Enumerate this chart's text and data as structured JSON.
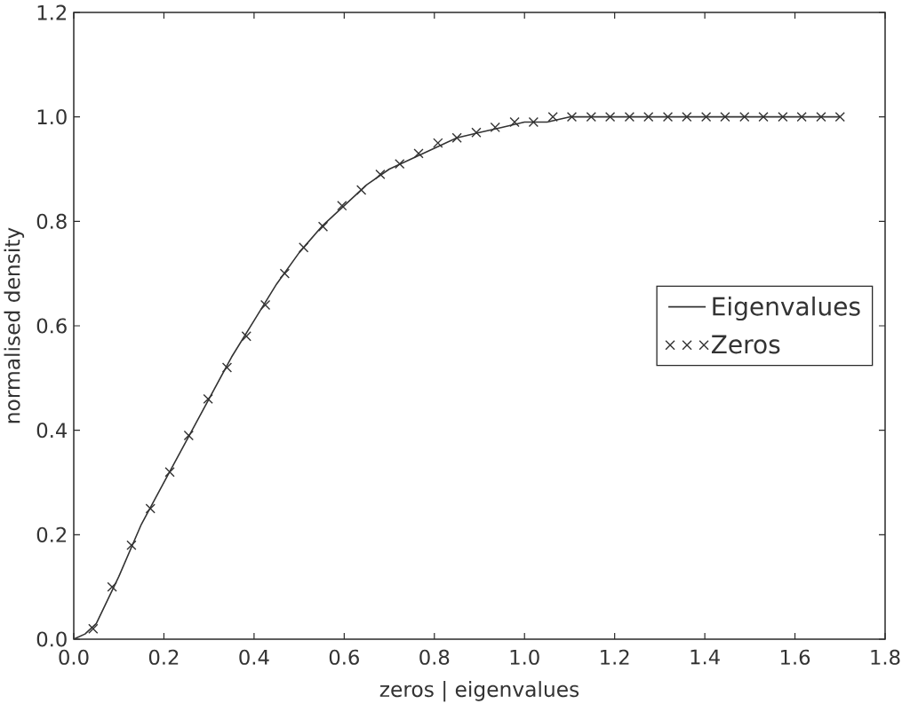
{
  "chart_data": {
    "type": "line",
    "xlabel": "zeros | eigenvalues",
    "ylabel": "normalised density",
    "xlim": [
      0,
      1.8
    ],
    "ylim": [
      0,
      1.2
    ],
    "xticks": [
      {
        "value": 0,
        "label": "0.0"
      },
      0.2,
      0.4,
      0.6,
      0.8,
      {
        "value": 1,
        "label": "1.0"
      },
      1.2,
      1.4,
      1.6,
      1.8
    ],
    "yticks": [
      {
        "value": 0,
        "label": "0.0"
      },
      0.2,
      0.4,
      0.6,
      0.8,
      {
        "value": 1,
        "label": "1.0"
      },
      1.2
    ],
    "legend": "right",
    "series": [
      {
        "name": "Eigenvalues",
        "type": "line",
        "color": "#333333",
        "marker": "none",
        "line_style": "solid",
        "x": [
          0,
          0.025,
          0.05,
          0.1,
          0.15,
          0.2,
          0.25,
          0.3,
          0.35,
          0.4,
          0.45,
          0.5,
          0.55,
          0.6,
          0.65,
          0.7,
          0.75,
          0.8,
          0.85,
          0.9,
          0.95,
          1.0,
          1.05,
          1.1,
          1.2,
          1.3,
          1.5,
          1.7
        ],
        "values": [
          0,
          0.01,
          0.03,
          0.12,
          0.22,
          0.3,
          0.38,
          0.46,
          0.54,
          0.61,
          0.68,
          0.74,
          0.79,
          0.83,
          0.87,
          0.9,
          0.92,
          0.94,
          0.96,
          0.97,
          0.98,
          0.99,
          0.99,
          1.0,
          1.0,
          1.0,
          1.0,
          1.0
        ]
      },
      {
        "name": "Zeros",
        "type": "scatter",
        "color": "#333333",
        "marker": "cross",
        "x": [
          0.043,
          0.085,
          0.128,
          0.17,
          0.213,
          0.255,
          0.298,
          0.34,
          0.383,
          0.425,
          0.468,
          0.51,
          0.553,
          0.595,
          0.638,
          0.68,
          0.723,
          0.765,
          0.808,
          0.85,
          0.893,
          0.935,
          0.978,
          1.02,
          1.063,
          1.105,
          1.148,
          1.19,
          1.233,
          1.275,
          1.318,
          1.36,
          1.403,
          1.445,
          1.488,
          1.53,
          1.573,
          1.615,
          1.658,
          1.7
        ],
        "values": [
          0.02,
          0.1,
          0.18,
          0.25,
          0.32,
          0.39,
          0.46,
          0.52,
          0.58,
          0.64,
          0.7,
          0.75,
          0.79,
          0.83,
          0.86,
          0.89,
          0.91,
          0.93,
          0.95,
          0.96,
          0.97,
          0.98,
          0.99,
          0.99,
          1.0,
          1.0,
          1.0,
          1.0,
          1.0,
          1.0,
          1.0,
          1.0,
          1.0,
          1.0,
          1.0,
          1.0,
          1.0,
          1.0,
          1.0,
          1.0
        ]
      }
    ]
  }
}
